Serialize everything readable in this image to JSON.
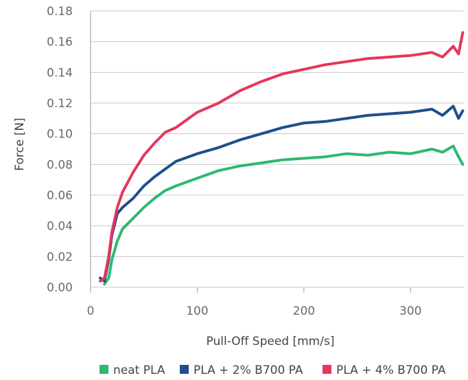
{
  "chart_data": {
    "type": "line",
    "xlabel": "Pull-Off Speed [mm/s]",
    "ylabel": "Force [N]",
    "xlim": [
      0,
      350
    ],
    "ylim": [
      0,
      0.18
    ],
    "x_ticks": [
      "0",
      "100",
      "200",
      "300"
    ],
    "y_ticks": [
      "0.00",
      "0.02",
      "0.04",
      "0.06",
      "0.08",
      "0.10",
      "0.12",
      "0.14",
      "0.16",
      "0.18"
    ],
    "grid": "horizontal",
    "legend_position": "bottom",
    "series": [
      {
        "name": "neat PLA",
        "color": "#2eb872",
        "x": [
          13,
          17,
          20,
          25,
          30,
          40,
          50,
          60,
          70,
          80,
          100,
          120,
          140,
          160,
          180,
          200,
          220,
          240,
          260,
          280,
          300,
          320,
          330,
          340,
          345,
          349
        ],
        "y": [
          0.002,
          0.006,
          0.018,
          0.03,
          0.038,
          0.045,
          0.052,
          0.058,
          0.063,
          0.066,
          0.071,
          0.076,
          0.079,
          0.081,
          0.083,
          0.084,
          0.085,
          0.087,
          0.086,
          0.088,
          0.087,
          0.09,
          0.088,
          0.092,
          0.085,
          0.08
        ]
      },
      {
        "name": "PLA + 2% B700 PA",
        "color": "#1f4e8c",
        "x": [
          9,
          13,
          17,
          20,
          25,
          30,
          40,
          50,
          60,
          70,
          80,
          100,
          120,
          140,
          160,
          180,
          200,
          220,
          240,
          260,
          280,
          300,
          320,
          330,
          340,
          345,
          349
        ],
        "y": [
          0.006,
          0.004,
          0.018,
          0.034,
          0.048,
          0.052,
          0.058,
          0.066,
          0.072,
          0.077,
          0.082,
          0.087,
          0.091,
          0.096,
          0.1,
          0.104,
          0.107,
          0.108,
          0.11,
          0.112,
          0.113,
          0.114,
          0.116,
          0.112,
          0.118,
          0.11,
          0.115
        ]
      },
      {
        "name": "PLA + 4% B700 PA",
        "color": "#e5365c",
        "x": [
          9,
          13,
          17,
          20,
          25,
          30,
          40,
          50,
          60,
          70,
          80,
          100,
          120,
          140,
          160,
          180,
          200,
          220,
          240,
          260,
          280,
          300,
          320,
          330,
          340,
          345,
          349
        ],
        "y": [
          0.004,
          0.006,
          0.02,
          0.036,
          0.052,
          0.062,
          0.075,
          0.086,
          0.094,
          0.101,
          0.104,
          0.114,
          0.12,
          0.128,
          0.134,
          0.139,
          0.142,
          0.145,
          0.147,
          0.149,
          0.15,
          0.151,
          0.153,
          0.15,
          0.157,
          0.152,
          0.166
        ]
      }
    ]
  }
}
